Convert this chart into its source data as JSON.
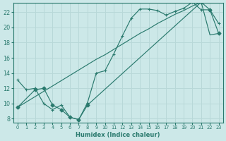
{
  "bg_color": "#cce8e8",
  "line_color": "#2a7a6e",
  "grid_color": "#b8d8d8",
  "xlabel": "Humidex (Indice chaleur)",
  "xlim": [
    -0.5,
    23.5
  ],
  "ylim": [
    7.5,
    23.2
  ],
  "xticks": [
    0,
    1,
    2,
    3,
    4,
    5,
    6,
    7,
    8,
    9,
    10,
    11,
    12,
    13,
    14,
    15,
    16,
    17,
    18,
    19,
    20,
    21,
    22,
    23
  ],
  "yticks": [
    8,
    10,
    12,
    14,
    16,
    18,
    20,
    22
  ],
  "curve1_x": [
    0,
    1,
    2,
    3,
    4,
    5,
    6,
    7,
    8,
    9,
    10,
    11,
    12,
    13,
    14,
    15,
    16,
    17,
    18,
    19,
    20,
    21,
    22,
    23
  ],
  "curve1_y": [
    13.1,
    11.8,
    12.0,
    10.0,
    9.2,
    9.8,
    8.2,
    7.9,
    10.1,
    14.0,
    14.3,
    16.5,
    18.9,
    21.2,
    22.4,
    22.4,
    22.2,
    21.6,
    22.1,
    22.5,
    23.3,
    22.3,
    22.3,
    20.5
  ],
  "curve2_x": [
    0,
    1,
    2,
    3,
    4,
    5,
    6,
    7,
    8,
    9,
    10,
    11,
    12,
    13,
    14,
    15,
    16,
    17,
    18,
    19,
    20,
    21,
    22,
    23
  ],
  "curve2_y": [
    9.5,
    10.2,
    10.9,
    11.6,
    12.3,
    13.0,
    13.7,
    14.4,
    15.1,
    15.8,
    16.4,
    17.1,
    17.8,
    18.5,
    19.2,
    19.8,
    20.5,
    21.1,
    21.7,
    22.2,
    22.8,
    23.3,
    19.0,
    19.2
  ],
  "curve3_x": [
    0,
    2,
    3,
    4,
    5,
    6,
    7,
    8,
    21,
    22,
    23
  ],
  "curve3_y": [
    9.5,
    11.8,
    12.0,
    9.8,
    9.2,
    8.2,
    7.9,
    9.8,
    23.3,
    22.3,
    19.2
  ]
}
